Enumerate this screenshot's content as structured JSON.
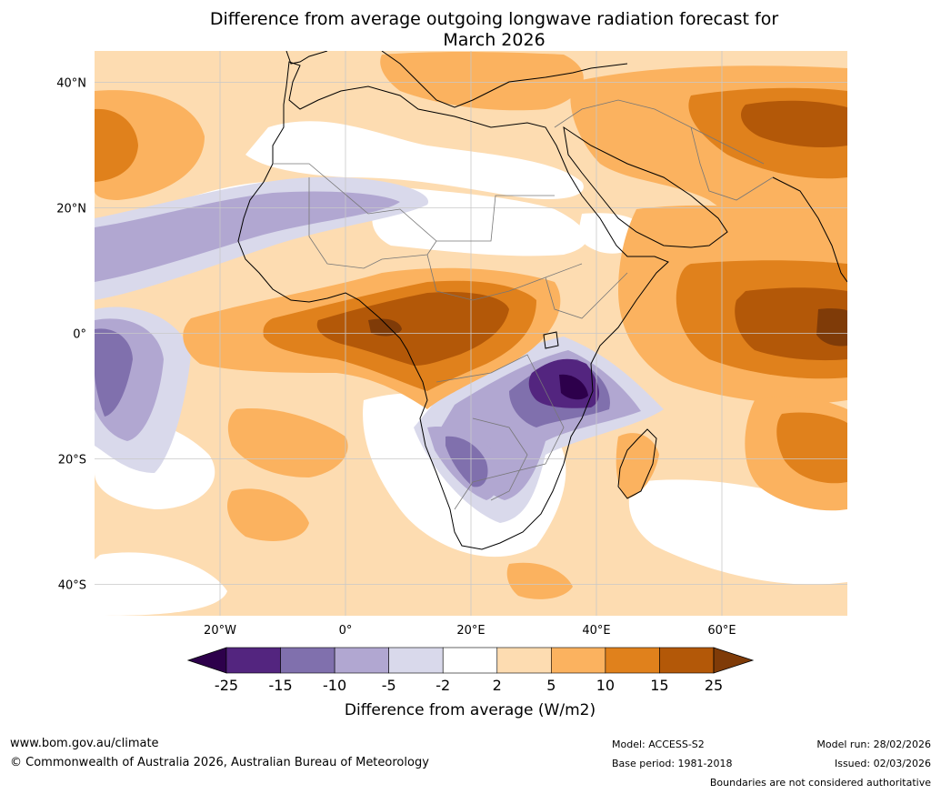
{
  "chart_data": {
    "type": "filled-contour-map",
    "title_line1": "Difference from average outgoing longwave radiation forecast for",
    "title_line2": "March 2026",
    "lat_range": [
      -45,
      45
    ],
    "lon_range": [
      -40,
      80
    ],
    "lat_ticks": [
      {
        "value": 40,
        "label": "40°N"
      },
      {
        "value": 20,
        "label": "20°N"
      },
      {
        "value": 0,
        "label": "0°"
      },
      {
        "value": -20,
        "label": "20°S"
      },
      {
        "value": -40,
        "label": "40°S"
      }
    ],
    "lon_ticks": [
      {
        "value": -20,
        "label": "20°W"
      },
      {
        "value": 0,
        "label": "0°"
      },
      {
        "value": 20,
        "label": "20°E"
      },
      {
        "value": 40,
        "label": "40°E"
      },
      {
        "value": 60,
        "label": "60°E"
      }
    ],
    "colorbar": {
      "title": "Difference from average (W/m2)",
      "levels": [
        "-25",
        "-15",
        "-10",
        "-5",
        "-2",
        "2",
        "5",
        "10",
        "15",
        "25"
      ],
      "colors": [
        "#53257f",
        "#8070ad",
        "#b1a7d1",
        "#d9d9eb",
        "#ffffff",
        "#fddcb1",
        "#fbb25f",
        "#e0811c",
        "#b35808"
      ],
      "under_color": "#2d004b",
      "over_color": "#7f3b08"
    }
  },
  "footer": {
    "url": "www.bom.gov.au/climate",
    "copyright": "© Commonwealth of Australia 2026, Australian Bureau of Meteorology",
    "model": "Model: ACCESS-S2",
    "base_period": "Base period: 1981-2018",
    "model_run": "Model run: 28/02/2026",
    "issued": "Issued: 02/03/2026",
    "boundaries_note": "Boundaries are not considered authoritative"
  }
}
